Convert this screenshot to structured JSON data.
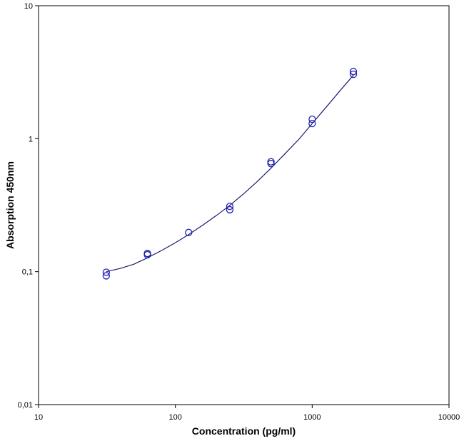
{
  "chart_data": {
    "type": "scatter",
    "xlabel": "Concentration (pg/ml)",
    "ylabel": "Absorption 450nm",
    "xscale": "log",
    "yscale": "log",
    "xlim": [
      10,
      10000
    ],
    "ylim": [
      0.01,
      10
    ],
    "x_ticks": [
      {
        "value": 10,
        "label": "10"
      },
      {
        "value": 100,
        "label": "100"
      },
      {
        "value": 1000,
        "label": "1000"
      },
      {
        "value": 10000,
        "label": "10000"
      }
    ],
    "y_ticks": [
      {
        "value": 0.01,
        "label": "0,01"
      },
      {
        "value": 0.1,
        "label": "0,1"
      },
      {
        "value": 1,
        "label": "1"
      },
      {
        "value": 10,
        "label": "10"
      }
    ],
    "grid": false,
    "legend": "none",
    "colors": {
      "marker": "#1f1fb4",
      "curve": "#1a1a6e",
      "axis": "#000000"
    },
    "points": [
      {
        "x": 31.25,
        "y": 0.099
      },
      {
        "x": 31.25,
        "y": 0.093
      },
      {
        "x": 62.5,
        "y": 0.137
      },
      {
        "x": 62.5,
        "y": 0.134
      },
      {
        "x": 125,
        "y": 0.197
      },
      {
        "x": 250,
        "y": 0.31
      },
      {
        "x": 250,
        "y": 0.292
      },
      {
        "x": 500,
        "y": 0.67
      },
      {
        "x": 500,
        "y": 0.65
      },
      {
        "x": 1000,
        "y": 1.4
      },
      {
        "x": 1000,
        "y": 1.3
      },
      {
        "x": 2000,
        "y": 3.2
      },
      {
        "x": 2000,
        "y": 3.05
      }
    ],
    "fit_curve": {
      "x": [
        31.25,
        40,
        50,
        62.5,
        80,
        100,
        125,
        160,
        200,
        250,
        320,
        400,
        500,
        640,
        800,
        1000,
        1280,
        1600,
        2000
      ],
      "y": [
        0.1,
        0.106,
        0.114,
        0.127,
        0.145,
        0.165,
        0.19,
        0.225,
        0.265,
        0.315,
        0.39,
        0.48,
        0.6,
        0.78,
        0.99,
        1.3,
        1.75,
        2.3,
        3.0
      ]
    }
  }
}
